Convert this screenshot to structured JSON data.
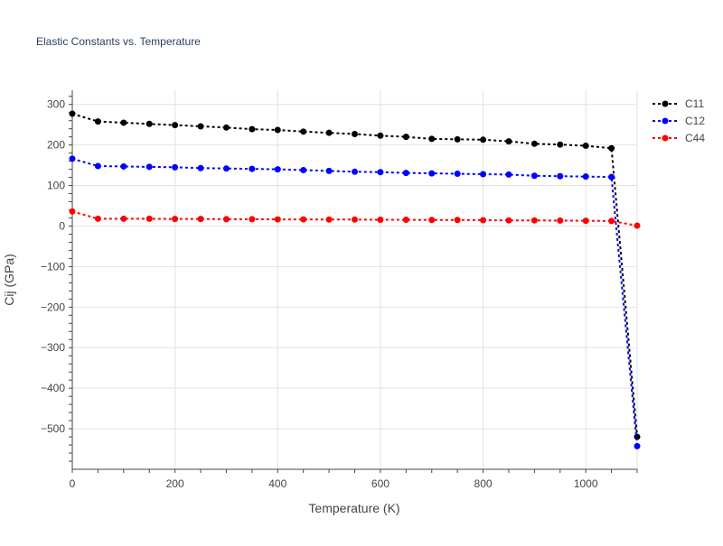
{
  "chart_data": {
    "type": "line",
    "title": "Elastic Constants vs. Temperature",
    "xlabel": "Temperature (K)",
    "ylabel": "Cij (GPa)",
    "xlim": [
      0,
      1100
    ],
    "ylim": [
      -600,
      335
    ],
    "x_ticks": [
      0,
      200,
      400,
      600,
      800,
      1000
    ],
    "y_ticks": [
      -500,
      -400,
      -300,
      -200,
      -100,
      0,
      100,
      200,
      300
    ],
    "x_tick_labels": [
      "0",
      "200",
      "400",
      "600",
      "800",
      "1000"
    ],
    "y_tick_labels": [
      "−500",
      "−400",
      "−300",
      "−200",
      "−100",
      "0",
      "100",
      "200",
      "300"
    ],
    "grid": true,
    "legend_position": "top-right",
    "line_style": "dotted with markers",
    "x": [
      0,
      50,
      100,
      150,
      200,
      250,
      300,
      350,
      400,
      450,
      500,
      550,
      600,
      650,
      700,
      750,
      800,
      850,
      900,
      950,
      1000,
      1050,
      1100
    ],
    "series": [
      {
        "name": "C11",
        "color": "#000000",
        "values": [
          277,
          258,
          255,
          252,
          249,
          246,
          243,
          239,
          237,
          233,
          230,
          227,
          223,
          220,
          215,
          214,
          213,
          209,
          203,
          201,
          198,
          192,
          -520
        ]
      },
      {
        "name": "C12",
        "color": "#0000ff",
        "values": [
          166,
          148,
          147,
          146,
          145,
          143,
          142,
          141,
          140,
          138,
          136,
          134,
          133,
          131,
          130,
          129,
          128,
          127,
          124,
          123,
          122,
          121,
          -543
        ]
      },
      {
        "name": "C44",
        "color": "#ff0000",
        "values": [
          36,
          18,
          18,
          18,
          17.5,
          17.5,
          17,
          17,
          16.5,
          16.5,
          16,
          16,
          15.5,
          15.5,
          15,
          15,
          14.5,
          14,
          14,
          13.5,
          13,
          12.5,
          1
        ]
      }
    ]
  }
}
